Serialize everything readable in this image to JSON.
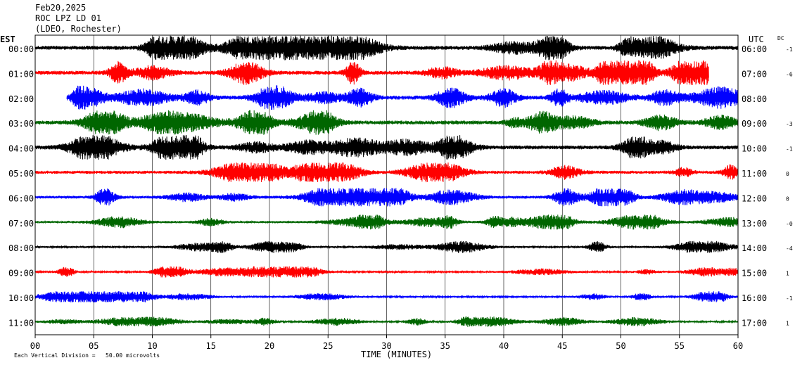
{
  "header": {
    "date": "Feb20,2025",
    "station": "ROC LPZ LD 01",
    "network": "(LDEO, Rochester)"
  },
  "chart_data": {
    "type": "line",
    "left_axis_label": "EST",
    "right_axis_label": "UTC",
    "dc_label": "DC",
    "xlabel": "TIME (MINUTES)",
    "footnote": "Each Vertical Division =   50.00 microvolts",
    "xlim": [
      0,
      60
    ],
    "x_ticks": [
      "00",
      "05",
      "10",
      "15",
      "20",
      "25",
      "30",
      "35",
      "40",
      "45",
      "50",
      "55",
      "60"
    ],
    "rows": [
      {
        "est": "00:00",
        "utc": "06:00",
        "dc": "-1",
        "color": "#000000",
        "start_min": 0,
        "end_min": 60,
        "amplitude": 1.0
      },
      {
        "est": "01:00",
        "utc": "07:00",
        "dc": "-6",
        "color": "#ff0000",
        "start_min": 0,
        "end_min": 57.5,
        "amplitude": 1.0
      },
      {
        "est": "02:00",
        "utc": "08:00",
        "dc": "",
        "color": "#0000ff",
        "start_min": 2.7,
        "end_min": 60,
        "amplitude": 1.0
      },
      {
        "est": "03:00",
        "utc": "09:00",
        "dc": "-3",
        "color": "#006600",
        "start_min": 0,
        "end_min": 60,
        "amplitude": 1.0
      },
      {
        "est": "04:00",
        "utc": "10:00",
        "dc": "-1",
        "color": "#000000",
        "start_min": 0,
        "end_min": 60,
        "amplitude": 1.0
      },
      {
        "est": "05:00",
        "utc": "11:00",
        "dc": "0",
        "color": "#ff0000",
        "start_min": 0,
        "end_min": 60,
        "amplitude": 0.8
      },
      {
        "est": "06:00",
        "utc": "12:00",
        "dc": "0",
        "color": "#0000ff",
        "start_min": 0,
        "end_min": 60,
        "amplitude": 0.75
      },
      {
        "est": "07:00",
        "utc": "13:00",
        "dc": "-0",
        "color": "#006600",
        "start_min": 0,
        "end_min": 60,
        "amplitude": 0.6
      },
      {
        "est": "08:00",
        "utc": "14:00",
        "dc": "-4",
        "color": "#000000",
        "start_min": 0,
        "end_min": 60,
        "amplitude": 0.5
      },
      {
        "est": "09:00",
        "utc": "15:00",
        "dc": "1",
        "color": "#ff0000",
        "start_min": 0,
        "end_min": 60,
        "amplitude": 0.45
      },
      {
        "est": "10:00",
        "utc": "16:00",
        "dc": "-1",
        "color": "#0000ff",
        "start_min": 0,
        "end_min": 60,
        "amplitude": 0.45
      },
      {
        "est": "11:00",
        "utc": "17:00",
        "dc": "1",
        "color": "#006600",
        "start_min": 0,
        "end_min": 60,
        "amplitude": 0.45
      }
    ]
  }
}
